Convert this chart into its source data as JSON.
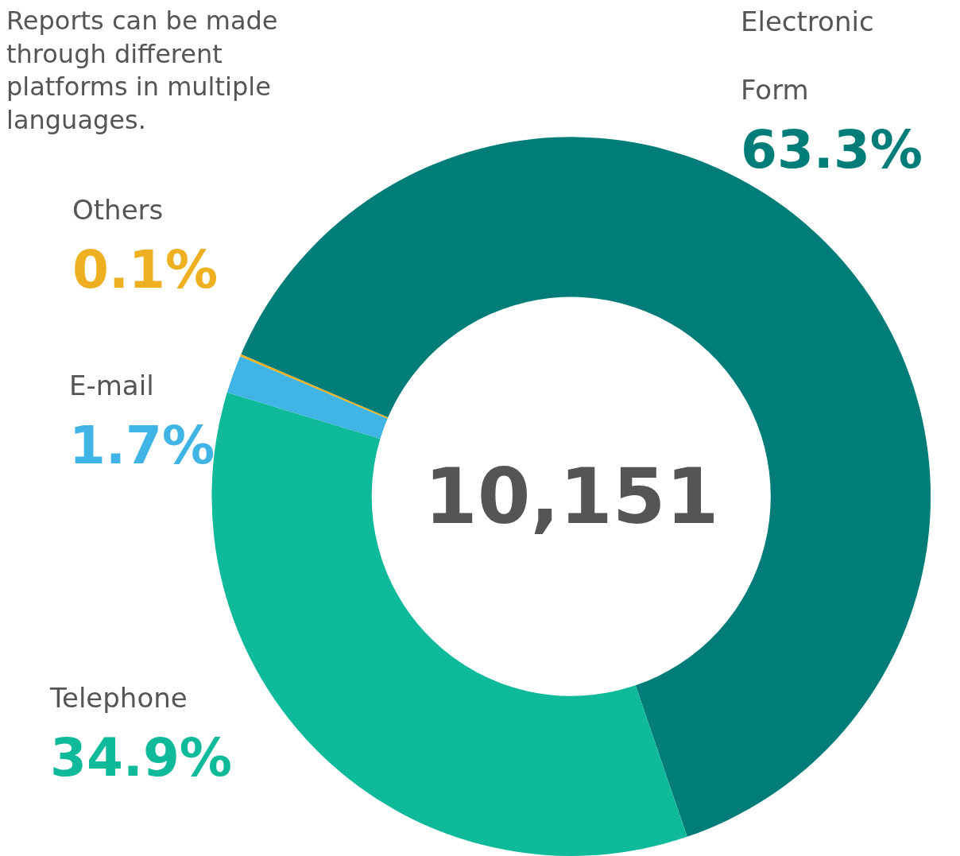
{
  "chart_data": {
    "type": "donut",
    "title": "Reports can be made through different platforms in multiple languages.",
    "annotations": [
      "10,151"
    ],
    "categories": [
      "Electronic Form",
      "Telephone",
      "E-mail",
      "Others"
    ],
    "values": [
      63.3,
      34.9,
      1.7,
      0.1
    ],
    "colors": [
      "#007d78",
      "#0fba9a",
      "#40b4e5",
      "#eeb020"
    ],
    "value_labels": [
      "63.3%",
      "34.9%",
      "1.7%",
      "0.1%"
    ]
  }
}
